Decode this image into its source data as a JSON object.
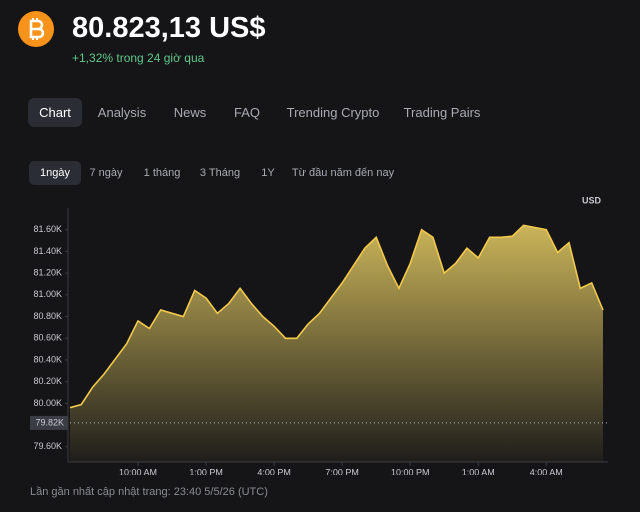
{
  "header": {
    "title": "80.823,13 US$",
    "change": "+1,32% trong 24 giờ qua"
  },
  "tabs": {
    "items": [
      "Chart",
      "Analysis",
      "News",
      "FAQ",
      "Trending Crypto",
      "Trading Pairs"
    ],
    "active": 0
  },
  "ranges": {
    "items": [
      "1ngày",
      "7 ngày",
      "1 tháng",
      "3 Tháng",
      "1Y",
      "Từ đầu năm đến nay"
    ],
    "active": 0
  },
  "chart_data": {
    "type": "area",
    "unit": "USD",
    "color": "#f2c94c",
    "categories": [
      null,
      null,
      null,
      null,
      null,
      null,
      "10:00 AM",
      null,
      null,
      null,
      null,
      null,
      "1:00 PM",
      null,
      null,
      null,
      null,
      null,
      "4:00 PM",
      null,
      null,
      null,
      null,
      null,
      "7:00 PM",
      null,
      null,
      null,
      null,
      null,
      "10:00 PM",
      null,
      null,
      null,
      null,
      null,
      "1:00 AM",
      null,
      null,
      null,
      null,
      null,
      "4:00 AM",
      null,
      null,
      null,
      null,
      null
    ],
    "values": [
      79960,
      79990,
      80150,
      80270,
      80410,
      80550,
      80760,
      80690,
      80860,
      80830,
      80800,
      81040,
      80970,
      80830,
      80920,
      81060,
      80920,
      80800,
      80710,
      80600,
      80600,
      80730,
      80830,
      80970,
      81110,
      81270,
      81430,
      81530,
      81270,
      81060,
      81290,
      81600,
      81530,
      81200,
      81290,
      81430,
      81340,
      81530,
      81530,
      81540,
      81640,
      81620,
      81600,
      81390,
      81480,
      81060,
      81110,
      80860
    ],
    "ylim": [
      79460,
      81800
    ],
    "yticks": [
      {
        "value": 79600,
        "label": "79.60K"
      },
      {
        "value": 80000,
        "label": "80.00K"
      },
      {
        "value": 80200,
        "label": "80.20K"
      },
      {
        "value": 80400,
        "label": "80.40K"
      },
      {
        "value": 80600,
        "label": "80.60K"
      },
      {
        "value": 80800,
        "label": "80.80K"
      },
      {
        "value": 81000,
        "label": "81.00K"
      },
      {
        "value": 81200,
        "label": "81.20K"
      },
      {
        "value": 81400,
        "label": "81.40K"
      },
      {
        "value": 81600,
        "label": "81.60K"
      }
    ],
    "baseline": {
      "value": 79820,
      "label": "79.82K"
    }
  },
  "footer": "Lần gần nhất cập nhật trang: 23:40 5/5/26 (UTC)"
}
